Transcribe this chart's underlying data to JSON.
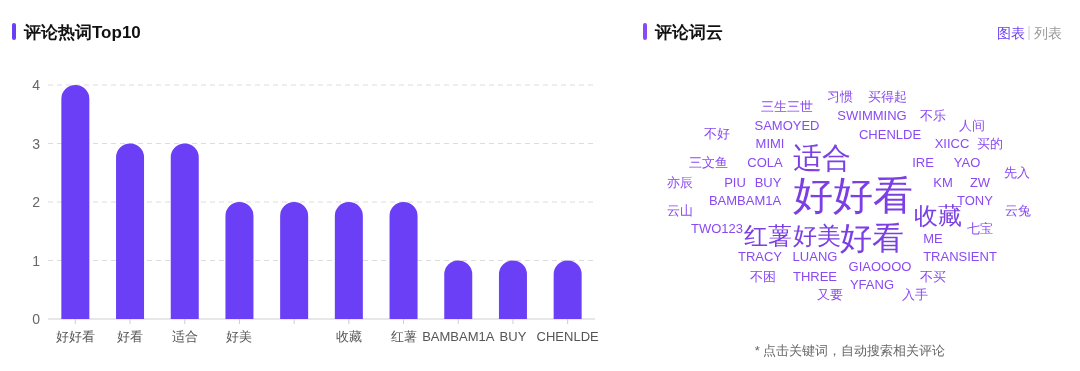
{
  "chart_data": [
    {
      "type": "bar",
      "title": "评论热词Top10",
      "categories": [
        "好好看",
        "好看",
        "适合",
        "好美",
        null,
        "收藏",
        "红薯",
        "BAMBAM1A",
        "BUY",
        "CHENLDE"
      ],
      "values": [
        4,
        3,
        3,
        2,
        2,
        2,
        2,
        1,
        1,
        1
      ],
      "color": "#6a3ff5",
      "ylim": [
        0,
        4
      ],
      "yticks": [
        0,
        1,
        2,
        3,
        4
      ],
      "grid": "y"
    },
    {
      "type": "other",
      "title": "评论词云",
      "color": "#8a4af3",
      "categories": [
        "三生三世",
        "习惯",
        "买得起",
        "SWIMMING",
        "不乐",
        "SAMOYED",
        "人间",
        "不好",
        "CHENLDE",
        "MIMI",
        "XIICC",
        "买的",
        "适合",
        "三文鱼",
        "COLA",
        "IRE",
        "YAO",
        "先入",
        "亦辰",
        "PIU",
        "BUY",
        "KM",
        "ZW",
        "好好看",
        "BAMBAM1A",
        "TONY",
        "云山",
        "收藏",
        "云兔",
        "TWO123",
        "七宝",
        "红薯",
        "好美",
        "好看",
        "ME",
        "TRACY",
        "LUANG",
        "TRANSIENT",
        "GIAOOOO",
        "不困",
        "THREE",
        "不买",
        "YFANG",
        "又要",
        "入手"
      ],
      "annotations": [
        "图表",
        "列表",
        "* 点击关键词，自动搜索相关评论"
      ]
    }
  ]
}
